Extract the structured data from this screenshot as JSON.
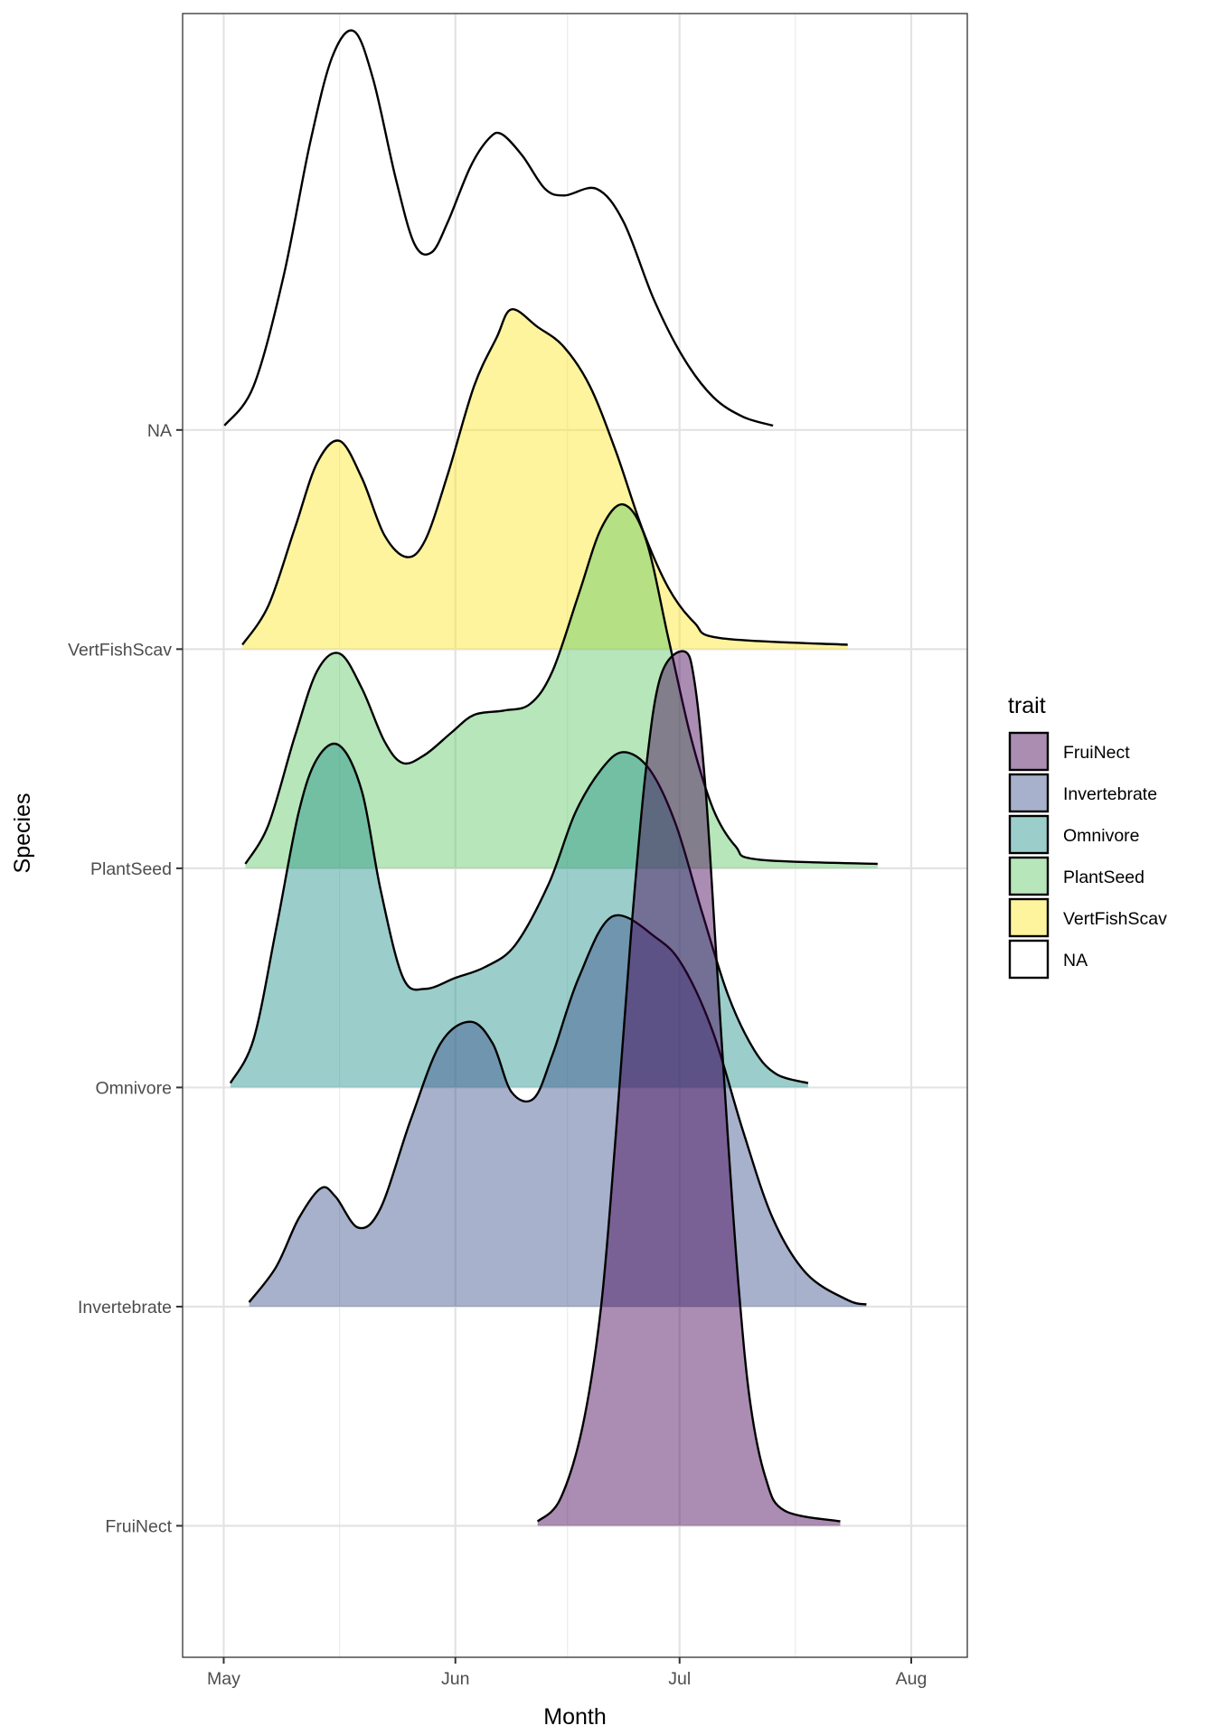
{
  "chart_data": {
    "type": "ridgeline-density",
    "title": "",
    "xlabel": "Month",
    "ylabel": "Species",
    "x_unit": "days since May 1",
    "xlim": [
      -5.5,
      99.5
    ],
    "x_ticks": [
      {
        "label": "May",
        "day": 0
      },
      {
        "label": "Jun",
        "day": 31
      },
      {
        "label": "Jul",
        "day": 61
      },
      {
        "label": "Aug",
        "day": 92
      }
    ],
    "x_minor_days": [
      15.5,
      46,
      76.5
    ],
    "categories": [
      "FruiNect",
      "Invertebrate",
      "Omnivore",
      "PlantSeed",
      "VertFishScav",
      "NA"
    ],
    "ylim": [
      -0.6,
      6.9
    ],
    "grid": true,
    "legend": {
      "title": "trait",
      "placement": "right",
      "entries": [
        {
          "label": "FruiNect",
          "color": "#440154"
        },
        {
          "label": "Invertebrate",
          "color": "#3B528B"
        },
        {
          "label": "Omnivore",
          "color": "#21908C"
        },
        {
          "label": "PlantSeed",
          "color": "#5DC863"
        },
        {
          "label": "VertFishScav",
          "color": "#FDE725"
        },
        {
          "label": "NA",
          "color": null
        }
      ]
    },
    "fill_alpha": 0.45,
    "series": [
      {
        "name": "FruiNect",
        "color": "#440154",
        "points": [
          [
            42.0,
            0.02
          ],
          [
            45.0,
            0.12
          ],
          [
            48.0,
            0.45
          ],
          [
            50.5,
            1.0
          ],
          [
            52.5,
            1.8
          ],
          [
            54.5,
            2.7
          ],
          [
            56.5,
            3.45
          ],
          [
            58.5,
            3.88
          ],
          [
            61.6,
            3.99
          ],
          [
            63.0,
            3.85
          ],
          [
            64.5,
            3.35
          ],
          [
            66.0,
            2.55
          ],
          [
            67.5,
            1.75
          ],
          [
            69.0,
            1.05
          ],
          [
            70.5,
            0.55
          ],
          [
            72.5,
            0.22
          ],
          [
            75.0,
            0.07
          ],
          [
            82.5,
            0.02
          ]
        ]
      },
      {
        "name": "Invertebrate",
        "color": "#3B528B",
        "points": [
          [
            3.4,
            0.02
          ],
          [
            7.0,
            0.18
          ],
          [
            10.0,
            0.4
          ],
          [
            13.0,
            0.54
          ],
          [
            15.0,
            0.5
          ],
          [
            18.0,
            0.36
          ],
          [
            21.0,
            0.45
          ],
          [
            25.0,
            0.85
          ],
          [
            29.0,
            1.2
          ],
          [
            33.0,
            1.3
          ],
          [
            36.0,
            1.2
          ],
          [
            38.5,
            0.98
          ],
          [
            41.5,
            0.95
          ],
          [
            44.0,
            1.15
          ],
          [
            47.5,
            1.5
          ],
          [
            52.0,
            1.78
          ],
          [
            58.0,
            1.68
          ],
          [
            61.5,
            1.55
          ],
          [
            65.5,
            1.25
          ],
          [
            69.5,
            0.8
          ],
          [
            73.5,
            0.4
          ],
          [
            78.0,
            0.15
          ],
          [
            83.5,
            0.03
          ],
          [
            86.0,
            0.01
          ]
        ]
      },
      {
        "name": "Omnivore",
        "color": "#21908C",
        "points": [
          [
            0.9,
            0.02
          ],
          [
            4.0,
            0.22
          ],
          [
            7.0,
            0.72
          ],
          [
            10.0,
            1.25
          ],
          [
            12.5,
            1.5
          ],
          [
            15.5,
            1.56
          ],
          [
            18.5,
            1.35
          ],
          [
            21.0,
            0.9
          ],
          [
            24.0,
            0.5
          ],
          [
            27.0,
            0.45
          ],
          [
            31.0,
            0.5
          ],
          [
            35.0,
            0.55
          ],
          [
            39.0,
            0.65
          ],
          [
            43.5,
            0.93
          ],
          [
            47.0,
            1.25
          ],
          [
            50.5,
            1.45
          ],
          [
            53.5,
            1.53
          ],
          [
            57.0,
            1.45
          ],
          [
            60.5,
            1.2
          ],
          [
            64.0,
            0.8
          ],
          [
            67.5,
            0.42
          ],
          [
            71.0,
            0.17
          ],
          [
            74.0,
            0.06
          ],
          [
            78.2,
            0.02
          ]
        ]
      },
      {
        "name": "PlantSeed",
        "color": "#5DC863",
        "points": [
          [
            2.9,
            0.02
          ],
          [
            6.0,
            0.2
          ],
          [
            9.5,
            0.6
          ],
          [
            12.5,
            0.9
          ],
          [
            15.5,
            0.98
          ],
          [
            18.5,
            0.82
          ],
          [
            21.5,
            0.58
          ],
          [
            24.0,
            0.48
          ],
          [
            27.0,
            0.52
          ],
          [
            30.5,
            0.62
          ],
          [
            33.5,
            0.7
          ],
          [
            37.5,
            0.72
          ],
          [
            41.0,
            0.75
          ],
          [
            44.0,
            0.9
          ],
          [
            47.5,
            1.25
          ],
          [
            50.5,
            1.55
          ],
          [
            53.5,
            1.66
          ],
          [
            56.5,
            1.5
          ],
          [
            59.5,
            1.05
          ],
          [
            62.5,
            0.6
          ],
          [
            65.5,
            0.27
          ],
          [
            68.5,
            0.1
          ],
          [
            71.5,
            0.04
          ],
          [
            87.5,
            0.02
          ]
        ]
      },
      {
        "name": "VertFishScav",
        "color": "#FDE725",
        "points": [
          [
            2.5,
            0.02
          ],
          [
            6.0,
            0.2
          ],
          [
            9.5,
            0.55
          ],
          [
            12.5,
            0.85
          ],
          [
            15.5,
            0.95
          ],
          [
            18.5,
            0.78
          ],
          [
            21.5,
            0.52
          ],
          [
            24.5,
            0.42
          ],
          [
            27.0,
            0.5
          ],
          [
            30.0,
            0.8
          ],
          [
            33.5,
            1.2
          ],
          [
            36.5,
            1.42
          ],
          [
            38.5,
            1.55
          ],
          [
            42.0,
            1.47
          ],
          [
            45.5,
            1.38
          ],
          [
            49.0,
            1.2
          ],
          [
            52.5,
            0.9
          ],
          [
            56.0,
            0.55
          ],
          [
            59.5,
            0.28
          ],
          [
            63.0,
            0.12
          ],
          [
            66.5,
            0.05
          ],
          [
            83.5,
            0.02
          ]
        ]
      },
      {
        "name": "NA",
        "color": null,
        "points": [
          [
            0.1,
            0.02
          ],
          [
            4.0,
            0.2
          ],
          [
            8.0,
            0.7
          ],
          [
            11.5,
            1.3
          ],
          [
            14.5,
            1.7
          ],
          [
            17.4,
            1.82
          ],
          [
            20.0,
            1.6
          ],
          [
            23.0,
            1.15
          ],
          [
            25.5,
            0.85
          ],
          [
            27.8,
            0.81
          ],
          [
            30.0,
            0.95
          ],
          [
            33.0,
            1.2
          ],
          [
            35.5,
            1.33
          ],
          [
            37.2,
            1.35
          ],
          [
            40.0,
            1.25
          ],
          [
            43.0,
            1.1
          ],
          [
            45.6,
            1.07
          ],
          [
            49.9,
            1.1
          ],
          [
            53.5,
            0.95
          ],
          [
            57.5,
            0.6
          ],
          [
            61.5,
            0.33
          ],
          [
            65.5,
            0.15
          ],
          [
            69.5,
            0.06
          ],
          [
            73.5,
            0.02
          ]
        ]
      }
    ]
  }
}
